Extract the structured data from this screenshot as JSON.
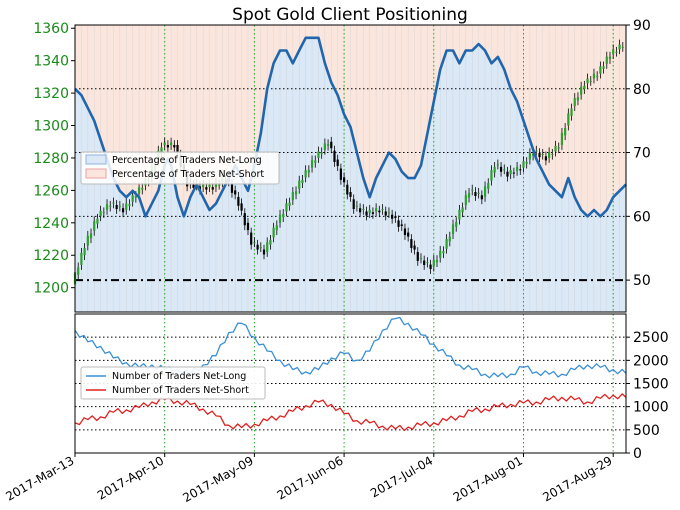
{
  "title": "Spot Gold Client Positioning",
  "colors": {
    "long_fill": "#dbe8f6",
    "short_fill": "#fbe6de",
    "pct_line": "#2166ac",
    "count_long": "#3a8fd6",
    "count_short": "#e02020",
    "left_axis": "#1a8a1a",
    "grid": "#000000",
    "vgrid": "#22aa22"
  },
  "x_dates": [
    "2017-Mar-13",
    "2017-Apr-10",
    "2017-May-09",
    "2017-Jun-06",
    "2017-Jul-04",
    "2017-Aug-01",
    "2017-Aug-29"
  ],
  "legend_top": [
    "Percentage of Traders Net-Long",
    "Percentage of Traders Net-Short"
  ],
  "legend_bottom": [
    "Number of Traders Net-Long",
    "Number of Traders Net-Short"
  ],
  "chart_data": [
    {
      "type": "line",
      "title": "Spot Gold Client Positioning",
      "y_left_ticks": [
        1200,
        1220,
        1240,
        1260,
        1280,
        1300,
        1320,
        1340,
        1360
      ],
      "y_right_ticks": [
        50,
        60,
        70,
        80,
        90
      ],
      "ylim_left": [
        1185,
        1362
      ],
      "ylim_right": [
        45,
        90
      ],
      "x_ticks": [
        "2017-Mar-13",
        "2017-Apr-10",
        "2017-May-09",
        "2017-Jun-06",
        "2017-Jul-04",
        "2017-Aug-01",
        "2017-Aug-29"
      ],
      "series": [
        {
          "name": "Percentage of Traders Net-Long",
          "x": [
            0,
            2,
            4,
            6,
            8,
            10,
            12,
            14,
            16,
            18,
            20,
            22,
            24,
            26,
            28,
            29,
            30,
            32,
            34,
            36,
            38,
            40,
            42,
            44,
            46,
            48,
            50,
            52,
            54,
            56,
            58,
            60,
            62,
            64,
            66,
            68,
            70,
            72,
            74,
            76,
            78,
            80,
            82,
            84,
            86,
            88,
            90,
            92,
            94,
            96,
            98,
            100,
            102,
            104,
            106,
            108,
            110,
            112,
            114,
            116,
            118,
            120,
            122,
            124,
            126,
            128,
            130,
            132,
            134,
            136,
            138,
            140,
            142,
            144,
            146,
            148,
            150,
            152,
            154,
            156,
            158,
            160,
            162,
            164,
            166,
            168,
            170,
            172
          ],
          "values": [
            80,
            79,
            77,
            75,
            72,
            69,
            66,
            64,
            63,
            64,
            63,
            60,
            62,
            64,
            68,
            69,
            68,
            63,
            60,
            63,
            65,
            63,
            61,
            62,
            64,
            66,
            68,
            66,
            64,
            68,
            73,
            80,
            84,
            86,
            86,
            84,
            86,
            88,
            88,
            88,
            84,
            81,
            79,
            76,
            74,
            70,
            66,
            63,
            66,
            68,
            70,
            69,
            67,
            66,
            66,
            68,
            73,
            78,
            83,
            86,
            86,
            84,
            86,
            86,
            87,
            86,
            84,
            85,
            83,
            80,
            78,
            75,
            72,
            69,
            67,
            65,
            64,
            63,
            66,
            63,
            61,
            60,
            61,
            60,
            61,
            63,
            64,
            65
          ]
        },
        {
          "name": "Spot Gold",
          "type": "candlestick",
          "x": [
            0,
            4,
            8,
            12,
            16,
            20,
            24,
            28,
            32,
            36,
            40,
            44,
            48,
            52,
            56,
            60,
            64,
            68,
            72,
            76,
            80,
            84,
            88,
            92,
            96,
            100,
            104,
            108,
            112,
            116,
            120,
            124,
            128,
            132,
            136,
            140,
            144,
            148,
            152,
            156,
            160,
            164,
            168,
            172
          ],
          "values": [
            1202,
            1226,
            1244,
            1252,
            1248,
            1258,
            1268,
            1288,
            1288,
            1264,
            1262,
            1262,
            1268,
            1252,
            1228,
            1222,
            1240,
            1254,
            1268,
            1280,
            1290,
            1268,
            1250,
            1246,
            1248,
            1244,
            1234,
            1218,
            1213,
            1224,
            1242,
            1260,
            1256,
            1276,
            1270,
            1274,
            1284,
            1280,
            1288,
            1312,
            1326,
            1332,
            1344,
            1350
          ]
        }
      ]
    },
    {
      "type": "line",
      "y_right_ticks": [
        0,
        500,
        1000,
        1500,
        2000,
        2500
      ],
      "ylim": [
        0,
        3000
      ],
      "series": [
        {
          "name": "Number of Traders Net-Long",
          "x": [
            0,
            4,
            8,
            12,
            16,
            20,
            24,
            28,
            32,
            36,
            40,
            44,
            48,
            52,
            56,
            60,
            64,
            68,
            72,
            76,
            80,
            84,
            88,
            92,
            96,
            100,
            104,
            108,
            112,
            116,
            120,
            124,
            128,
            132,
            136,
            140,
            144,
            148,
            152,
            156,
            160,
            164,
            168,
            172
          ],
          "values": [
            2650,
            2400,
            2300,
            2050,
            1950,
            1850,
            1900,
            1800,
            1800,
            1700,
            1900,
            2100,
            2600,
            2800,
            2500,
            2200,
            2000,
            1800,
            1750,
            1800,
            2050,
            2150,
            2000,
            2200,
            2650,
            2900,
            2800,
            2550,
            2350,
            2100,
            1900,
            1800,
            1700,
            1650,
            1700,
            1850,
            1750,
            1700,
            1700,
            1800,
            1900,
            1850,
            1800,
            1720
          ]
        },
        {
          "name": "Number of Traders Net-Short",
          "x": [
            0,
            4,
            8,
            12,
            16,
            20,
            24,
            28,
            32,
            36,
            40,
            44,
            48,
            52,
            56,
            60,
            64,
            68,
            72,
            76,
            80,
            84,
            88,
            92,
            96,
            100,
            104,
            108,
            112,
            116,
            120,
            124,
            128,
            132,
            136,
            140,
            144,
            148,
            152,
            156,
            160,
            164,
            168,
            172
          ],
          "values": [
            650,
            720,
            780,
            880,
            930,
            980,
            1100,
            1150,
            1120,
            1050,
            950,
            800,
            600,
            550,
            620,
            700,
            800,
            900,
            1020,
            1100,
            1050,
            850,
            700,
            650,
            580,
            520,
            560,
            600,
            650,
            700,
            800,
            900,
            950,
            1000,
            1050,
            1080,
            1100,
            1150,
            1200,
            1150,
            1100,
            1180,
            1250,
            1200
          ]
        }
      ]
    }
  ]
}
